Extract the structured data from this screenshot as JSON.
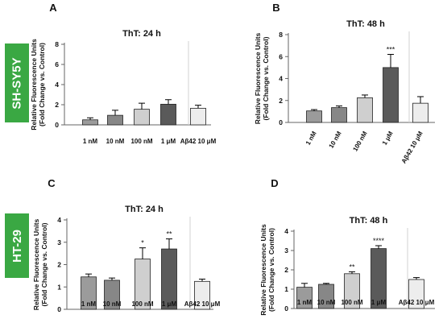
{
  "row_labels": [
    "SH-SY5Y",
    "HT-29"
  ],
  "colors": {
    "side_label_bg": "#3aa843",
    "side_label_text": "#ffffff",
    "error_bar": "#000000"
  },
  "chart_data": [
    {
      "panel": "A",
      "type": "bar",
      "title": "ThT: 24 h",
      "ylabel": "Relative Fluorescence Units\n(Fold Change vs. Control)",
      "categories": [
        "1 nM",
        "10 nM",
        "100 nM",
        "1 μM",
        "Aβ42 10 μM"
      ],
      "values": [
        0.5,
        0.95,
        1.55,
        2.05,
        1.65
      ],
      "errors": [
        0.2,
        0.5,
        0.6,
        0.45,
        0.3
      ],
      "significance": [
        "",
        "",
        "",
        "",
        ""
      ],
      "colors": [
        "#9b9b9b",
        "#878787",
        "#cfcfcf",
        "#5a5a5a",
        "#ededed"
      ],
      "ylim": [
        0,
        8
      ],
      "yticks": [
        0,
        2,
        4,
        6,
        8
      ],
      "tick_rotate": false
    },
    {
      "panel": "B",
      "type": "bar",
      "title": "ThT: 48 h",
      "ylabel": "Relative Fluorescence Units\n(Fold Change vs. Control)",
      "categories": [
        "1 nM",
        "10 nM",
        "100 nM",
        "1 μM",
        "Aβ42 10 μM"
      ],
      "values": [
        1.05,
        1.35,
        2.25,
        5.0,
        1.75
      ],
      "errors": [
        0.12,
        0.15,
        0.25,
        1.2,
        0.6
      ],
      "significance": [
        "",
        "",
        "",
        "***",
        ""
      ],
      "colors": [
        "#9b9b9b",
        "#878787",
        "#cfcfcf",
        "#5a5a5a",
        "#ededed"
      ],
      "ylim": [
        0,
        8
      ],
      "yticks": [
        0,
        2,
        4,
        6,
        8
      ],
      "tick_rotate": true
    },
    {
      "panel": "C",
      "type": "bar",
      "title": "ThT: 24 h",
      "ylabel": "Relative Fluorescence Units\n(Fold Change vs. Control)",
      "categories": [
        "1 nM",
        "10 nM",
        "100 nM",
        "1 μM",
        "Aβ42 10 μM"
      ],
      "values": [
        1.45,
        1.3,
        2.25,
        2.7,
        1.25
      ],
      "errors": [
        0.13,
        0.1,
        0.5,
        0.45,
        0.1
      ],
      "significance": [
        "",
        "",
        "*",
        "**",
        ""
      ],
      "colors": [
        "#9b9b9b",
        "#878787",
        "#cfcfcf",
        "#5a5a5a",
        "#ededed"
      ],
      "ylim": [
        0,
        4
      ],
      "yticks": [
        0,
        1,
        2,
        3,
        4
      ],
      "tick_rotate": false
    },
    {
      "panel": "D",
      "type": "bar",
      "title": "ThT: 48 h",
      "ylabel": "Relative Fluorescence Units\n(Fold Change vs. Control)",
      "categories": [
        "1 nM",
        "10 nM",
        "100 nM",
        "1 μM",
        "Aβ42 10 μM"
      ],
      "values": [
        1.1,
        1.25,
        1.8,
        3.1,
        1.5
      ],
      "errors": [
        0.2,
        0.05,
        0.1,
        0.15,
        0.1
      ],
      "significance": [
        "",
        "",
        "**",
        "****",
        ""
      ],
      "colors": [
        "#9b9b9b",
        "#878787",
        "#cfcfcf",
        "#5a5a5a",
        "#ededed"
      ],
      "ylim": [
        0,
        4
      ],
      "yticks": [
        0,
        1,
        2,
        3,
        4
      ],
      "tick_rotate": false
    }
  ]
}
